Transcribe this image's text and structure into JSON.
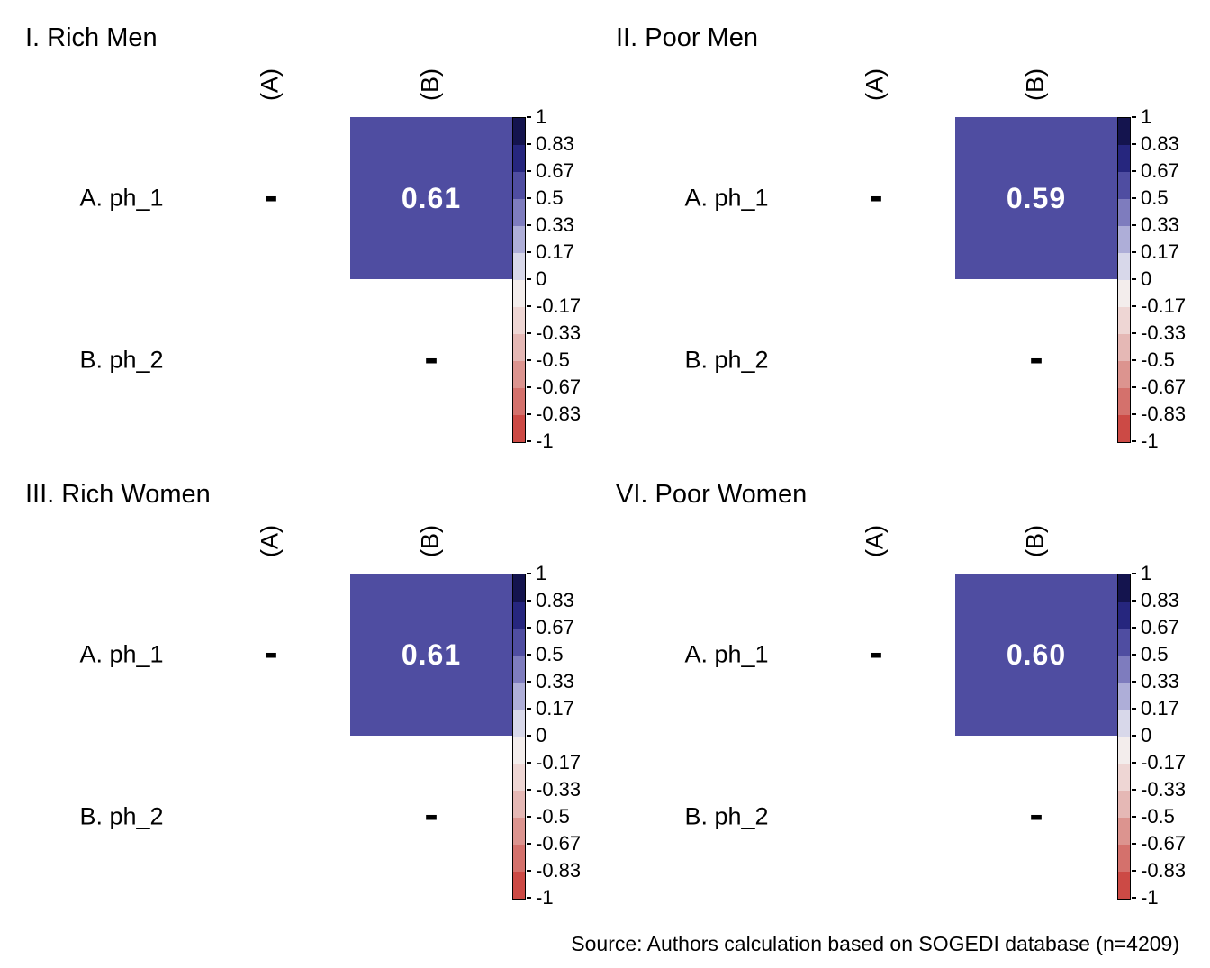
{
  "background": "#ffffff",
  "panels": [
    {
      "title": "I. Rich Men",
      "col_labels": [
        "(A)",
        "(B)"
      ],
      "row_labels": [
        "A. ph_1",
        "B. ph_2"
      ],
      "diag_dash": "-",
      "cell_value": "0.61",
      "cell_color": "#4F4DA1",
      "cell_text_color": "#ffffff"
    },
    {
      "title": "II. Poor Men",
      "col_labels": [
        "(A)",
        "(B)"
      ],
      "row_labels": [
        "A. ph_1",
        "B. ph_2"
      ],
      "diag_dash": "-",
      "cell_value": "0.59",
      "cell_color": "#4F4DA1",
      "cell_text_color": "#ffffff"
    },
    {
      "title": "III. Rich Women",
      "col_labels": [
        "(A)",
        "(B)"
      ],
      "row_labels": [
        "A. ph_1",
        "B. ph_2"
      ],
      "diag_dash": "-",
      "cell_value": "0.61",
      "cell_color": "#4F4DA1",
      "cell_text_color": "#ffffff"
    },
    {
      "title": "VI. Poor Women",
      "col_labels": [
        "(A)",
        "(B)"
      ],
      "row_labels": [
        "A. ph_1",
        "B. ph_2"
      ],
      "diag_dash": "-",
      "cell_value": "0.60",
      "cell_color": "#4F4DA1",
      "cell_text_color": "#ffffff"
    }
  ],
  "colorbar": {
    "tick_labels": [
      "1",
      "0.83",
      "0.67",
      "0.5",
      "0.33",
      "0.17",
      "0",
      "-0.17",
      "-0.33",
      "-0.5",
      "-0.67",
      "-0.83",
      "-1"
    ],
    "segment_colors": [
      "#14144E",
      "#26267E",
      "#4F4DA1",
      "#7E7CBE",
      "#AEAED8",
      "#D8D8EA",
      "#F3EDEC",
      "#EED6D4",
      "#E5B8B5",
      "#DC948F",
      "#D4716C",
      "#CC4A45"
    ],
    "max": 1,
    "min": -1
  },
  "source_note": "Source: Authors calculation based on SOGEDI database (n=4209)",
  "chart_data": [
    {
      "type": "heatmap",
      "title": "I. Rich Men",
      "x_labels": [
        "(A)",
        "(B)"
      ],
      "y_labels": [
        "A. ph_1",
        "B. ph_2"
      ],
      "values": [
        [
          null,
          0.61
        ],
        [
          null,
          null
        ]
      ],
      "diagonal_marker": "-",
      "colorbar": {
        "min": -1,
        "max": 1,
        "ticks": [
          1,
          0.83,
          0.67,
          0.5,
          0.33,
          0.17,
          0,
          -0.17,
          -0.33,
          -0.5,
          -0.67,
          -0.83,
          -1
        ]
      },
      "legend_position": "right"
    },
    {
      "type": "heatmap",
      "title": "II. Poor Men",
      "x_labels": [
        "(A)",
        "(B)"
      ],
      "y_labels": [
        "A. ph_1",
        "B. ph_2"
      ],
      "values": [
        [
          null,
          0.59
        ],
        [
          null,
          null
        ]
      ],
      "diagonal_marker": "-",
      "colorbar": {
        "min": -1,
        "max": 1,
        "ticks": [
          1,
          0.83,
          0.67,
          0.5,
          0.33,
          0.17,
          0,
          -0.17,
          -0.33,
          -0.5,
          -0.67,
          -0.83,
          -1
        ]
      },
      "legend_position": "right"
    },
    {
      "type": "heatmap",
      "title": "III. Rich Women",
      "x_labels": [
        "(A)",
        "(B)"
      ],
      "y_labels": [
        "A. ph_1",
        "B. ph_2"
      ],
      "values": [
        [
          null,
          0.61
        ],
        [
          null,
          null
        ]
      ],
      "diagonal_marker": "-",
      "colorbar": {
        "min": -1,
        "max": 1,
        "ticks": [
          1,
          0.83,
          0.67,
          0.5,
          0.33,
          0.17,
          0,
          -0.17,
          -0.33,
          -0.5,
          -0.67,
          -0.83,
          -1
        ]
      },
      "legend_position": "right"
    },
    {
      "type": "heatmap",
      "title": "VI. Poor Women",
      "x_labels": [
        "(A)",
        "(B)"
      ],
      "y_labels": [
        "A. ph_1",
        "B. ph_2"
      ],
      "values": [
        [
          null,
          0.6
        ],
        [
          null,
          null
        ]
      ],
      "diagonal_marker": "-",
      "colorbar": {
        "min": -1,
        "max": 1,
        "ticks": [
          1,
          0.83,
          0.67,
          0.5,
          0.33,
          0.17,
          0,
          -0.17,
          -0.33,
          -0.5,
          -0.67,
          -0.83,
          -1
        ]
      },
      "legend_position": "right"
    }
  ]
}
